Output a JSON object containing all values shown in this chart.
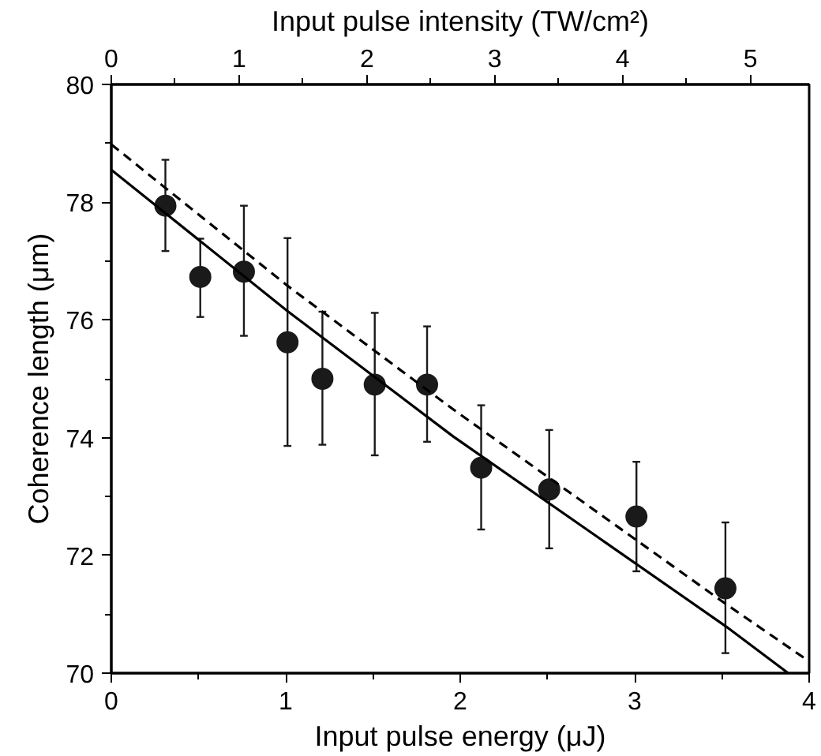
{
  "chart_data": {
    "type": "scatter",
    "xlabel": "Input pulse energy (μJ)",
    "ylabel": "Coherence length (μm)",
    "x2label": "Input pulse intensity (TW/cm²)",
    "xlim": [
      0,
      4
    ],
    "ylim": [
      70,
      80
    ],
    "x2lim": [
      0,
      5.46
    ],
    "xticks": [
      0,
      {
        "value": 0.5,
        "label": null
      },
      1,
      {
        "value": 1.5,
        "label": null
      },
      2,
      {
        "value": 2.5,
        "label": null
      },
      3,
      {
        "value": 3.5,
        "label": null
      },
      4
    ],
    "x2ticks": [
      0,
      {
        "value": 0.5,
        "label": null
      },
      1,
      {
        "value": 1.5,
        "label": null
      },
      2,
      {
        "value": 2.5,
        "label": null
      },
      3,
      {
        "value": 3.5,
        "label": null
      },
      4,
      {
        "value": 4.5,
        "label": null
      },
      5
    ],
    "yticks": [
      70,
      {
        "value": 71,
        "label": null
      },
      72,
      {
        "value": 73,
        "label": null
      },
      74,
      {
        "value": 75,
        "label": null
      },
      76,
      {
        "value": 77,
        "label": null
      },
      78,
      {
        "value": 79,
        "label": null
      },
      80
    ],
    "grid": false,
    "series": [
      {
        "color": "#1a1a1a",
        "marker": "circle",
        "x": [
          0.31,
          0.51,
          0.76,
          1.01,
          1.21,
          1.51,
          1.81,
          2.12,
          2.51,
          3.01,
          3.52
        ],
        "values": [
          77.94,
          76.73,
          76.82,
          75.62,
          75.0,
          74.9,
          74.9,
          73.49,
          73.12,
          72.66,
          71.44
        ],
        "errors": [
          [
            77.17,
            78.72
          ],
          [
            76.05,
            77.38
          ],
          [
            75.73,
            77.94
          ],
          [
            73.86,
            77.39
          ],
          [
            73.88,
            76.14
          ],
          [
            73.7,
            76.12
          ],
          [
            73.93,
            75.89
          ],
          [
            72.44,
            74.55
          ],
          [
            72.12,
            74.13
          ],
          [
            71.73,
            73.59
          ],
          [
            70.34,
            72.56
          ]
        ]
      },
      {
        "type": "line",
        "color": "#000000",
        "line_style": "solid",
        "x": [
          0,
          1.01,
          1.96,
          3.52,
          3.88
        ],
        "values": [
          78.55,
          76.15,
          74.02,
          70.8,
          70.0
        ]
      },
      {
        "type": "line",
        "color": "#000000",
        "line_style": "dashed",
        "x": [
          0,
          1.01,
          1.96,
          3.52,
          3.98
        ],
        "values": [
          78.98,
          76.58,
          74.48,
          71.18,
          70.24
        ]
      }
    ]
  }
}
